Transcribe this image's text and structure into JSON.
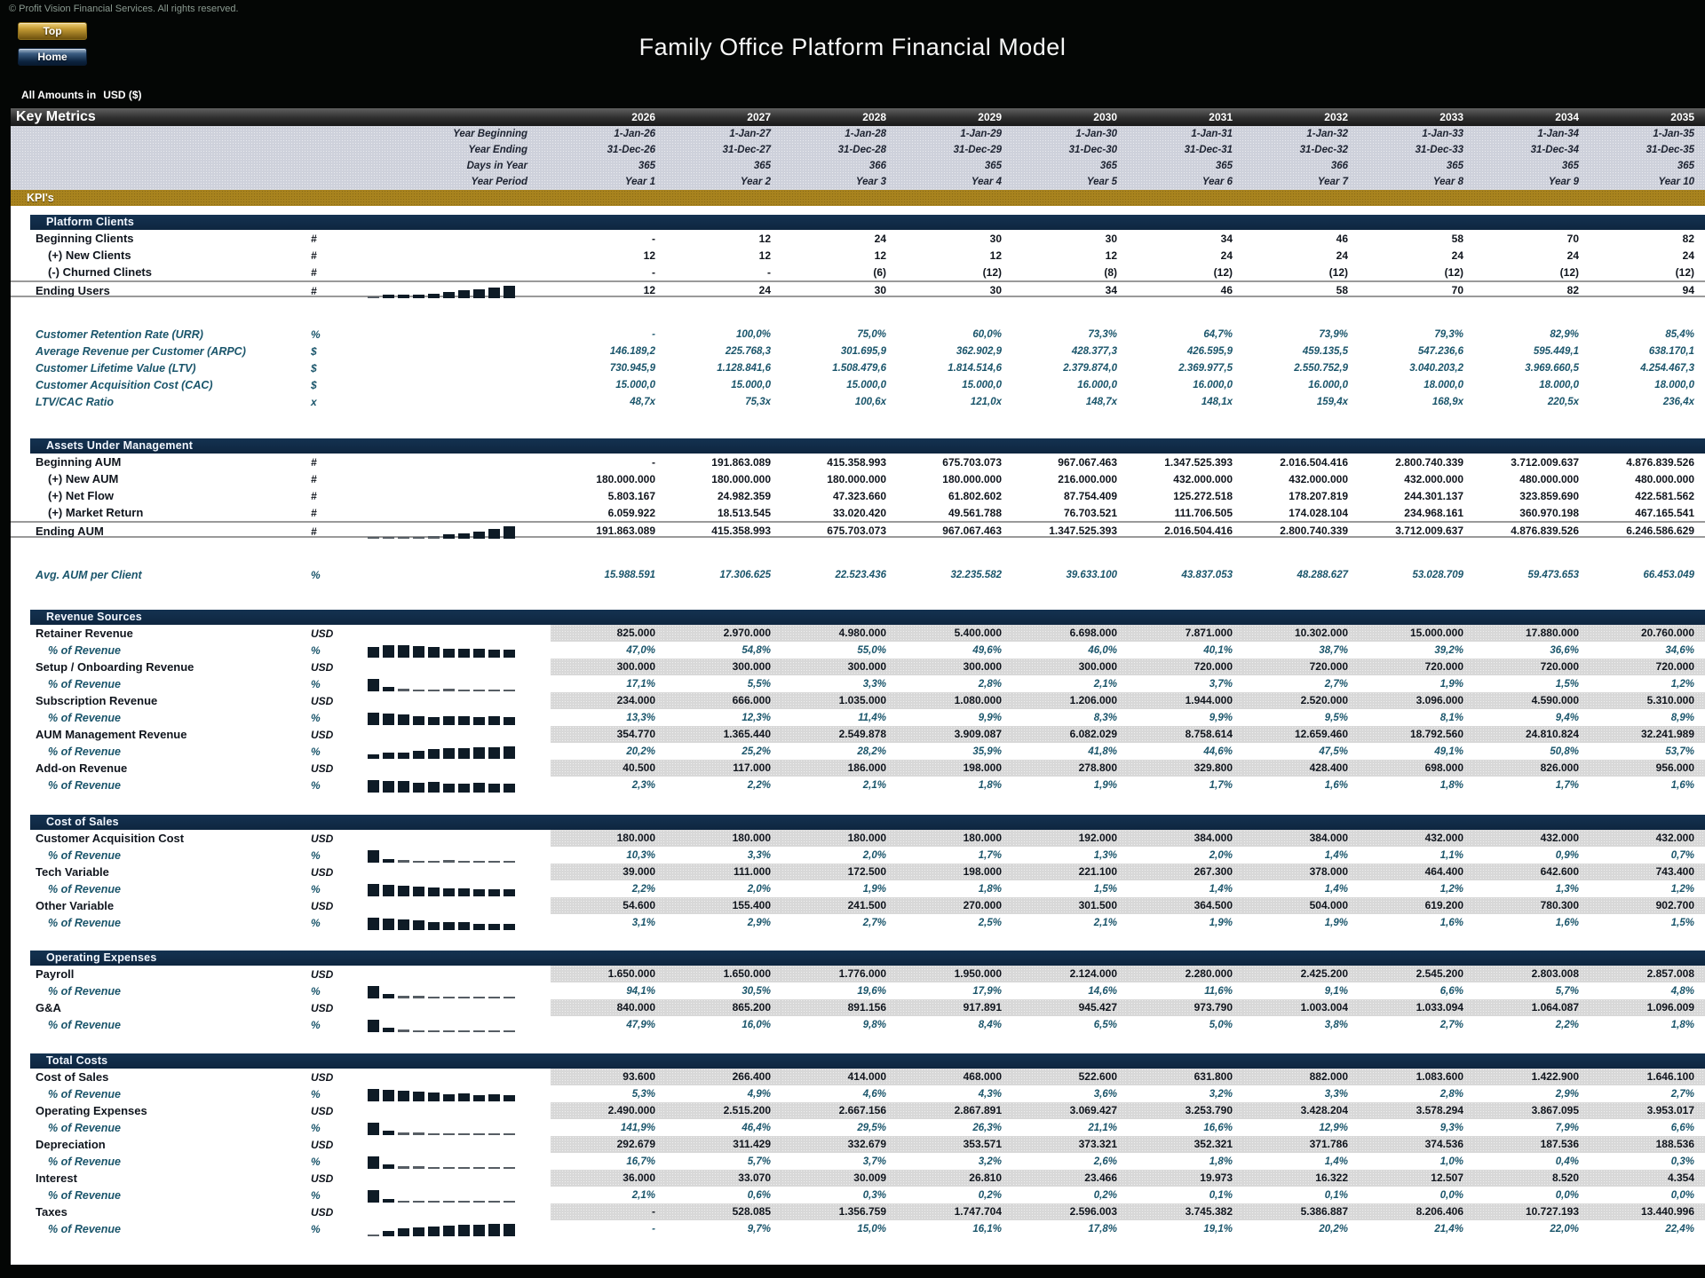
{
  "page": {
    "copyright": "© Profit Vision Financial Services. All rights reserved.",
    "title": "Family Office Platform Financial Model",
    "buttons": {
      "top": "Top",
      "home": "Home"
    },
    "amounts_prefix": "All Amounts in",
    "amounts_unit": "USD ($)",
    "colors": {
      "accent_gold": "#a8831e",
      "accent_navy": "#0f2a44",
      "metric_teal": "#1a556b",
      "band_gray": "#d8d8d8"
    }
  },
  "header": {
    "title": "Key Metrics",
    "years": [
      "2026",
      "2027",
      "2028",
      "2029",
      "2030",
      "2031",
      "2032",
      "2033",
      "2034",
      "2035"
    ],
    "meta_rows": [
      {
        "label": "Year Beginning",
        "values": [
          "1-Jan-26",
          "1-Jan-27",
          "1-Jan-28",
          "1-Jan-29",
          "1-Jan-30",
          "1-Jan-31",
          "1-Jan-32",
          "1-Jan-33",
          "1-Jan-34",
          "1-Jan-35"
        ]
      },
      {
        "label": "Year Ending",
        "values": [
          "31-Dec-26",
          "31-Dec-27",
          "31-Dec-28",
          "31-Dec-29",
          "31-Dec-30",
          "31-Dec-31",
          "31-Dec-32",
          "31-Dec-33",
          "31-Dec-34",
          "31-Dec-35"
        ]
      },
      {
        "label": "Days in Year",
        "values": [
          "365",
          "365",
          "366",
          "365",
          "365",
          "365",
          "366",
          "365",
          "365",
          "365"
        ]
      },
      {
        "label": "Year Period",
        "values": [
          "Year 1",
          "Year 2",
          "Year 3",
          "Year 4",
          "Year 5",
          "Year 6",
          "Year 7",
          "Year 8",
          "Year 9",
          "Year 10"
        ]
      }
    ],
    "kpi_bar": "KPI's"
  },
  "sections": [
    {
      "title": "Platform Clients",
      "rows": [
        {
          "label": "Beginning Clients",
          "unit": "#",
          "cls": "main",
          "values": [
            "-",
            "12",
            "24",
            "30",
            "30",
            "34",
            "46",
            "58",
            "70",
            "82"
          ]
        },
        {
          "label": "(+) New Clients",
          "unit": "#",
          "cls": "sub",
          "values": [
            "12",
            "12",
            "12",
            "12",
            "12",
            "24",
            "24",
            "24",
            "24",
            "24"
          ]
        },
        {
          "label": "(-) Churned Clinets",
          "unit": "#",
          "cls": "sub",
          "values": [
            "-",
            "-",
            "(6)",
            "(12)",
            "(8)",
            "(12)",
            "(12)",
            "(12)",
            "(12)",
            "(12)"
          ]
        },
        {
          "label": "Ending Users",
          "unit": "#",
          "cls": "main total",
          "spark": true,
          "values": [
            "12",
            "24",
            "30",
            "30",
            "34",
            "46",
            "58",
            "70",
            "82",
            "94"
          ]
        },
        {
          "label": "Customer Retention Rate (URR)",
          "unit": "%",
          "cls": "metric",
          "spacer": true,
          "values": [
            "-",
            "100,0%",
            "75,0%",
            "60,0%",
            "73,3%",
            "64,7%",
            "73,9%",
            "79,3%",
            "82,9%",
            "85,4%"
          ]
        },
        {
          "label": "Average Revenue per Customer (ARPC)",
          "unit": "$",
          "cls": "metric",
          "values": [
            "146.189,2",
            "225.768,3",
            "301.695,9",
            "362.902,9",
            "428.377,3",
            "426.595,9",
            "459.135,5",
            "547.236,6",
            "595.449,1",
            "638.170,1"
          ]
        },
        {
          "label": "Customer Lifetime Value (LTV)",
          "unit": "$",
          "cls": "metric",
          "values": [
            "730.945,9",
            "1.128.841,6",
            "1.508.479,6",
            "1.814.514,6",
            "2.379.874,0",
            "2.369.977,5",
            "2.550.752,9",
            "3.040.203,2",
            "3.969.660,5",
            "4.254.467,3"
          ]
        },
        {
          "label": "Customer Acquisition Cost (CAC)",
          "unit": "$",
          "cls": "metric",
          "values": [
            "15.000,0",
            "15.000,0",
            "15.000,0",
            "15.000,0",
            "16.000,0",
            "16.000,0",
            "16.000,0",
            "18.000,0",
            "18.000,0",
            "18.000,0"
          ]
        },
        {
          "label": "LTV/CAC Ratio",
          "unit": "x",
          "cls": "metric",
          "values": [
            "48,7x",
            "75,3x",
            "100,6x",
            "121,0x",
            "148,7x",
            "148,1x",
            "159,4x",
            "168,9x",
            "220,5x",
            "236,4x"
          ]
        }
      ]
    },
    {
      "title": "Assets Under Management",
      "rows": [
        {
          "label": "Beginning AUM",
          "unit": "#",
          "cls": "main",
          "values": [
            "-",
            "191.863.089",
            "415.358.993",
            "675.703.073",
            "967.067.463",
            "1.347.525.393",
            "2.016.504.416",
            "2.800.740.339",
            "3.712.009.637",
            "4.876.839.526"
          ]
        },
        {
          "label": "(+) New AUM",
          "unit": "#",
          "cls": "sub",
          "values": [
            "180.000.000",
            "180.000.000",
            "180.000.000",
            "180.000.000",
            "216.000.000",
            "432.000.000",
            "432.000.000",
            "432.000.000",
            "480.000.000",
            "480.000.000"
          ]
        },
        {
          "label": "(+) Net Flow",
          "unit": "#",
          "cls": "sub",
          "values": [
            "5.803.167",
            "24.982.359",
            "47.323.660",
            "61.802.602",
            "87.754.409",
            "125.272.518",
            "178.207.819",
            "244.301.137",
            "323.859.690",
            "422.581.562"
          ]
        },
        {
          "label": "(+) Market Return",
          "unit": "#",
          "cls": "sub",
          "values": [
            "6.059.922",
            "18.513.545",
            "33.020.420",
            "49.561.788",
            "76.703.521",
            "111.706.505",
            "174.028.104",
            "234.968.161",
            "360.970.198",
            "467.165.541"
          ]
        },
        {
          "label": "Ending AUM",
          "unit": "#",
          "cls": "main total",
          "spark": true,
          "values": [
            "191.863.089",
            "415.358.993",
            "675.703.073",
            "967.067.463",
            "1.347.525.393",
            "2.016.504.416",
            "2.800.740.339",
            "3.712.009.637",
            "4.876.839.526",
            "6.246.586.629"
          ]
        },
        {
          "label": "Avg. AUM per Client",
          "unit": "%",
          "cls": "metric",
          "spacer": true,
          "values": [
            "15.988.591",
            "17.306.625",
            "22.523.436",
            "32.235.582",
            "39.633.100",
            "43.837.053",
            "48.288.627",
            "53.028.709",
            "59.473.653",
            "66.453.049"
          ]
        }
      ]
    },
    {
      "title": "Revenue Sources",
      "rows": [
        {
          "label": "Retainer Revenue",
          "unit": "USD",
          "cls": "main usd",
          "values": [
            "825.000",
            "2.970.000",
            "4.980.000",
            "5.400.000",
            "6.698.000",
            "7.871.000",
            "10.302.000",
            "15.000.000",
            "17.880.000",
            "20.760.000"
          ]
        },
        {
          "label": "% of Revenue",
          "unit": "%",
          "cls": "pct",
          "spark": true,
          "values": [
            "47,0%",
            "54,8%",
            "55,0%",
            "49,6%",
            "46,0%",
            "40,1%",
            "38,7%",
            "39,2%",
            "36,6%",
            "34,6%"
          ]
        },
        {
          "label": "Setup / Onboarding Revenue",
          "unit": "USD",
          "cls": "main usd",
          "values": [
            "300.000",
            "300.000",
            "300.000",
            "300.000",
            "300.000",
            "720.000",
            "720.000",
            "720.000",
            "720.000",
            "720.000"
          ]
        },
        {
          "label": "% of Revenue",
          "unit": "%",
          "cls": "pct",
          "spark": true,
          "values": [
            "17,1%",
            "5,5%",
            "3,3%",
            "2,8%",
            "2,1%",
            "3,7%",
            "2,7%",
            "1,9%",
            "1,5%",
            "1,2%"
          ]
        },
        {
          "label": "Subscription Revenue",
          "unit": "USD",
          "cls": "main usd",
          "values": [
            "234.000",
            "666.000",
            "1.035.000",
            "1.080.000",
            "1.206.000",
            "1.944.000",
            "2.520.000",
            "3.096.000",
            "4.590.000",
            "5.310.000"
          ]
        },
        {
          "label": "% of Revenue",
          "unit": "%",
          "cls": "pct",
          "spark": true,
          "values": [
            "13,3%",
            "12,3%",
            "11,4%",
            "9,9%",
            "8,3%",
            "9,9%",
            "9,5%",
            "8,1%",
            "9,4%",
            "8,9%"
          ]
        },
        {
          "label": "AUM Management Revenue",
          "unit": "USD",
          "cls": "main usd",
          "values": [
            "354.770",
            "1.365.440",
            "2.549.878",
            "3.909.087",
            "6.082.029",
            "8.758.614",
            "12.659.460",
            "18.792.560",
            "24.810.824",
            "32.241.989"
          ]
        },
        {
          "label": "% of Revenue",
          "unit": "%",
          "cls": "pct",
          "spark": true,
          "values": [
            "20,2%",
            "25,2%",
            "28,2%",
            "35,9%",
            "41,8%",
            "44,6%",
            "47,5%",
            "49,1%",
            "50,8%",
            "53,7%"
          ]
        },
        {
          "label": "Add-on Revenue",
          "unit": "USD",
          "cls": "main usd",
          "values": [
            "40.500",
            "117.000",
            "186.000",
            "198.000",
            "278.800",
            "329.800",
            "428.400",
            "698.000",
            "826.000",
            "956.000"
          ]
        },
        {
          "label": "% of Revenue",
          "unit": "%",
          "cls": "pct",
          "spark": true,
          "values": [
            "2,3%",
            "2,2%",
            "2,1%",
            "1,8%",
            "1,9%",
            "1,7%",
            "1,6%",
            "1,8%",
            "1,7%",
            "1,6%"
          ]
        }
      ]
    },
    {
      "title": "Cost of Sales",
      "rows": [
        {
          "label": "Customer Acquisition Cost",
          "unit": "USD",
          "cls": "main usd",
          "values": [
            "180.000",
            "180.000",
            "180.000",
            "180.000",
            "192.000",
            "384.000",
            "384.000",
            "432.000",
            "432.000",
            "432.000"
          ]
        },
        {
          "label": "% of Revenue",
          "unit": "%",
          "cls": "pct",
          "spark": true,
          "values": [
            "10,3%",
            "3,3%",
            "2,0%",
            "1,7%",
            "1,3%",
            "2,0%",
            "1,4%",
            "1,1%",
            "0,9%",
            "0,7%"
          ]
        },
        {
          "label": "Tech Variable",
          "unit": "USD",
          "cls": "main usd",
          "values": [
            "39.000",
            "111.000",
            "172.500",
            "198.000",
            "221.100",
            "267.300",
            "378.000",
            "464.400",
            "642.600",
            "743.400"
          ]
        },
        {
          "label": "% of Revenue",
          "unit": "%",
          "cls": "pct",
          "spark": true,
          "values": [
            "2,2%",
            "2,0%",
            "1,9%",
            "1,8%",
            "1,5%",
            "1,4%",
            "1,4%",
            "1,2%",
            "1,3%",
            "1,2%"
          ]
        },
        {
          "label": "Other Variable",
          "unit": "USD",
          "cls": "main usd",
          "values": [
            "54.600",
            "155.400",
            "241.500",
            "270.000",
            "301.500",
            "364.500",
            "504.000",
            "619.200",
            "780.300",
            "902.700"
          ]
        },
        {
          "label": "% of Revenue",
          "unit": "%",
          "cls": "pct",
          "spark": true,
          "values": [
            "3,1%",
            "2,9%",
            "2,7%",
            "2,5%",
            "2,1%",
            "1,9%",
            "1,9%",
            "1,6%",
            "1,6%",
            "1,5%"
          ]
        }
      ]
    },
    {
      "title": "Operating Expenses",
      "rows": [
        {
          "label": "Payroll",
          "unit": "USD",
          "cls": "main usd",
          "values": [
            "1.650.000",
            "1.650.000",
            "1.776.000",
            "1.950.000",
            "2.124.000",
            "2.280.000",
            "2.425.200",
            "2.545.200",
            "2.803.008",
            "2.857.008"
          ]
        },
        {
          "label": "% of Revenue",
          "unit": "%",
          "cls": "pct",
          "spark": true,
          "values": [
            "94,1%",
            "30,5%",
            "19,6%",
            "17,9%",
            "14,6%",
            "11,6%",
            "9,1%",
            "6,6%",
            "5,7%",
            "4,8%"
          ]
        },
        {
          "label": "G&A",
          "unit": "USD",
          "cls": "main usd",
          "values": [
            "840.000",
            "865.200",
            "891.156",
            "917.891",
            "945.427",
            "973.790",
            "1.003.004",
            "1.033.094",
            "1.064.087",
            "1.096.009"
          ]
        },
        {
          "label": "% of Revenue",
          "unit": "%",
          "cls": "pct",
          "spark": true,
          "values": [
            "47,9%",
            "16,0%",
            "9,8%",
            "8,4%",
            "6,5%",
            "5,0%",
            "3,8%",
            "2,7%",
            "2,2%",
            "1,8%"
          ]
        }
      ]
    },
    {
      "title": "Total Costs",
      "rows": [
        {
          "label": "Cost of Sales",
          "unit": "USD",
          "cls": "main usd",
          "values": [
            "93.600",
            "266.400",
            "414.000",
            "468.000",
            "522.600",
            "631.800",
            "882.000",
            "1.083.600",
            "1.422.900",
            "1.646.100"
          ]
        },
        {
          "label": "% of Revenue",
          "unit": "%",
          "cls": "pct",
          "spark": true,
          "values": [
            "5,3%",
            "4,9%",
            "4,6%",
            "4,3%",
            "3,6%",
            "3,2%",
            "3,3%",
            "2,8%",
            "2,9%",
            "2,7%"
          ]
        },
        {
          "label": "Operating Expenses",
          "unit": "USD",
          "cls": "main usd",
          "values": [
            "2.490.000",
            "2.515.200",
            "2.667.156",
            "2.867.891",
            "3.069.427",
            "3.253.790",
            "3.428.204",
            "3.578.294",
            "3.867.095",
            "3.953.017"
          ]
        },
        {
          "label": "% of Revenue",
          "unit": "%",
          "cls": "pct",
          "spark": true,
          "values": [
            "141,9%",
            "46,4%",
            "29,5%",
            "26,3%",
            "21,1%",
            "16,6%",
            "12,9%",
            "9,3%",
            "7,9%",
            "6,6%"
          ]
        },
        {
          "label": "Depreciation",
          "unit": "USD",
          "cls": "main usd",
          "values": [
            "292.679",
            "311.429",
            "332.679",
            "353.571",
            "373.321",
            "352.321",
            "371.786",
            "374.536",
            "187.536",
            "188.536"
          ]
        },
        {
          "label": "% of Revenue",
          "unit": "%",
          "cls": "pct",
          "spark": true,
          "values": [
            "16,7%",
            "5,7%",
            "3,7%",
            "3,2%",
            "2,6%",
            "1,8%",
            "1,4%",
            "1,0%",
            "0,4%",
            "0,3%"
          ]
        },
        {
          "label": "Interest",
          "unit": "USD",
          "cls": "main usd",
          "values": [
            "36.000",
            "33.070",
            "30.009",
            "26.810",
            "23.466",
            "19.973",
            "16.322",
            "12.507",
            "8.520",
            "4.354"
          ]
        },
        {
          "label": "% of Revenue",
          "unit": "%",
          "cls": "pct",
          "spark": true,
          "values": [
            "2,1%",
            "0,6%",
            "0,3%",
            "0,2%",
            "0,2%",
            "0,1%",
            "0,1%",
            "0,0%",
            "0,0%",
            "0,0%"
          ]
        },
        {
          "label": "Taxes",
          "unit": "USD",
          "cls": "main usd",
          "values": [
            "-",
            "528.085",
            "1.356.759",
            "1.747.704",
            "2.596.003",
            "3.745.382",
            "5.386.887",
            "8.206.406",
            "10.727.193",
            "13.440.996"
          ]
        },
        {
          "label": "% of Revenue",
          "unit": "%",
          "cls": "pct",
          "spark": true,
          "values": [
            "-",
            "9,7%",
            "15,0%",
            "16,1%",
            "17,8%",
            "19,1%",
            "20,2%",
            "21,4%",
            "22,0%",
            "22,4%"
          ]
        }
      ]
    }
  ]
}
